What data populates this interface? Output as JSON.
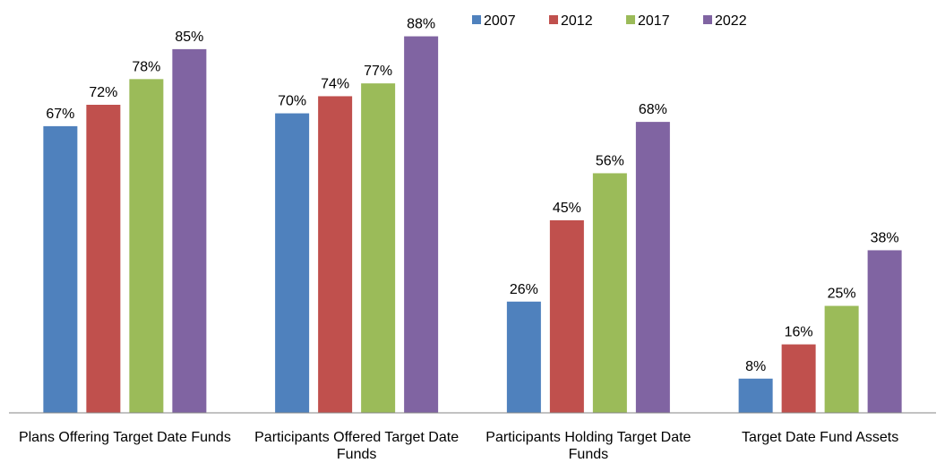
{
  "chart_data": {
    "type": "bar",
    "categories": [
      "Plans Offering Target Date Funds",
      "Participants Offered Target Date Funds",
      "Participants Holding Target Date Funds",
      "Target Date Fund Assets"
    ],
    "series": [
      {
        "name": "2007",
        "color": "#4f81bd",
        "values": [
          67,
          70,
          26,
          8
        ],
        "value_labels": [
          "67%",
          "70%",
          "26%",
          "8%"
        ]
      },
      {
        "name": "2012",
        "color": "#c0504d",
        "values": [
          72,
          74,
          45,
          16
        ],
        "value_labels": [
          "72%",
          "74%",
          "45%",
          "16%"
        ]
      },
      {
        "name": "2017",
        "color": "#9bbb59",
        "values": [
          78,
          77,
          56,
          25
        ],
        "value_labels": [
          "78%",
          "77%",
          "56%",
          "25%"
        ]
      },
      {
        "name": "2022",
        "color": "#8064a2",
        "values": [
          85,
          88,
          68,
          38
        ],
        "value_labels": [
          "85%",
          "88%",
          "68%",
          "38%"
        ]
      }
    ],
    "ylim": [
      0,
      90
    ],
    "legend": "top"
  }
}
